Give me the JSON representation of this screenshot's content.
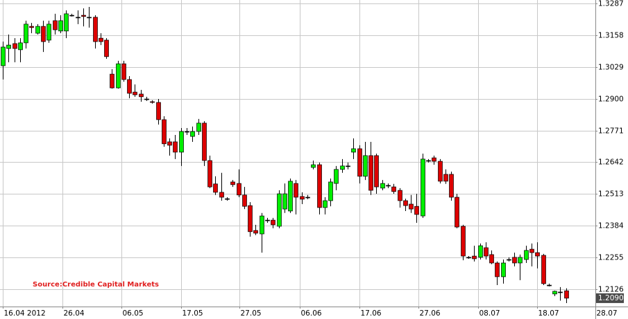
{
  "chart_data": {
    "type": "candlestick",
    "annotation": "Source:Credible Capital Markets",
    "x": [
      0,
      1,
      2,
      3,
      4,
      5,
      6,
      7,
      8,
      9,
      10,
      11,
      12,
      13,
      14,
      15,
      16,
      17,
      18,
      19,
      20,
      21,
      22,
      23,
      24,
      25,
      26,
      27,
      28,
      29,
      30,
      31,
      32,
      33,
      34,
      35,
      36,
      37,
      38,
      39,
      40,
      41,
      42,
      43,
      44,
      45,
      46,
      47,
      48,
      49,
      50,
      51,
      52,
      53,
      54,
      55,
      56,
      57,
      58,
      59,
      60,
      61,
      62,
      63,
      64,
      65,
      66,
      67,
      68,
      69,
      70,
      71,
      72,
      73,
      74,
      75,
      76,
      77,
      78,
      79,
      80,
      81,
      82,
      83,
      84,
      85,
      86,
      87,
      88,
      89,
      90,
      91,
      92,
      93,
      94,
      95,
      96,
      97,
      98
    ],
    "open": [
      1.3034,
      1.3104,
      1.3124,
      1.3099,
      1.3127,
      1.3194,
      1.3166,
      1.3194,
      1.3138,
      1.3217,
      1.3175,
      1.3175,
      1.3239,
      1.3231,
      1.3239,
      1.3231,
      1.3231,
      1.3146,
      1.3138,
      1.3,
      1.2944,
      1.3042,
      1.2978,
      1.2927,
      1.2919,
      1.2899,
      1.2888,
      1.2885,
      1.2815,
      1.2725,
      1.2725,
      1.2683,
      1.2767,
      1.2747,
      1.2767,
      1.2801,
      1.2649,
      1.2554,
      1.252,
      1.2494,
      1.2562,
      1.2556,
      1.2509,
      1.2466,
      1.2365,
      1.2351,
      1.2407,
      1.2407,
      1.2382,
      1.2452,
      1.2444,
      1.2556,
      1.2503,
      1.25,
      1.2621,
      1.2632,
      1.2458,
      1.2486,
      1.2556,
      1.2613,
      1.2627,
      1.2683,
      1.2697,
      1.2585,
      1.2669,
      1.2669,
      1.2537,
      1.2548,
      1.2542,
      1.2528,
      1.2486,
      1.2472,
      1.2463,
      1.2424,
      1.2649,
      1.266,
      1.2646,
      1.2593,
      1.2593,
      1.25,
      1.2382,
      1.2256,
      1.2261,
      1.2256,
      1.2295,
      1.2267,
      1.2233,
      1.2177,
      1.2247,
      1.2256,
      1.2233,
      1.2247,
      1.2289,
      1.2275,
      1.2264,
      1.2143,
      1.2107,
      1.2115,
      1.212
    ],
    "high": [
      1.3132,
      1.3161,
      1.3146,
      1.3146,
      1.3217,
      1.3208,
      1.3203,
      1.3217,
      1.3217,
      1.3245,
      1.3239,
      1.3259,
      1.3245,
      1.3259,
      1.3267,
      1.3273,
      1.3239,
      1.3166,
      1.3146,
      1.302,
      1.3054,
      1.3054,
      1.2992,
      1.2958,
      1.2936,
      1.2908,
      1.2894,
      1.2899,
      1.2829,
      1.2739,
      1.2753,
      1.2781,
      1.2781,
      1.2787,
      1.2818,
      1.2809,
      1.2669,
      1.2585,
      1.2599,
      1.25,
      1.257,
      1.2613,
      1.2542,
      1.248,
      1.2388,
      1.2436,
      1.2416,
      1.2416,
      1.2528,
      1.2556,
      1.2576,
      1.257,
      1.252,
      1.2509,
      1.2649,
      1.2641,
      1.25,
      1.2576,
      1.2627,
      1.2655,
      1.2641,
      1.2739,
      1.2711,
      1.2725,
      1.2725,
      1.2677,
      1.257,
      1.2556,
      1.2554,
      1.2537,
      1.2494,
      1.2509,
      1.2514,
      1.2677,
      1.2655,
      1.2669,
      1.2655,
      1.2613,
      1.2604,
      1.2514,
      1.2388,
      1.2261,
      1.2303,
      1.2312,
      1.2317,
      1.2284,
      1.2239,
      1.2247,
      1.2256,
      1.2275,
      1.2267,
      1.2303,
      1.2312,
      1.2317,
      1.227,
      1.2149,
      1.2121,
      1.2135,
      1.213
    ],
    "low": [
      1.2978,
      1.3048,
      1.3048,
      1.3048,
      1.3104,
      1.3166,
      1.3161,
      1.309,
      1.3127,
      1.3161,
      1.3166,
      1.3146,
      1.3234,
      1.3203,
      1.3194,
      1.3189,
      1.3104,
      1.3118,
      1.3062,
      1.2941,
      1.2941,
      1.2969,
      1.2902,
      1.2908,
      1.2888,
      1.2891,
      1.288,
      1.2795,
      1.2705,
      1.2669,
      1.2655,
      1.2627,
      1.2753,
      1.2725,
      1.2753,
      1.2627,
      1.2537,
      1.2509,
      1.2486,
      1.2486,
      1.2542,
      1.25,
      1.2452,
      1.234,
      1.2346,
      1.2275,
      1.2396,
      1.2374,
      1.2374,
      1.2436,
      1.2436,
      1.243,
      1.2472,
      1.2492,
      1.2613,
      1.243,
      1.243,
      1.2463,
      1.2528,
      1.2599,
      1.2613,
      1.2655,
      1.2556,
      1.257,
      1.2509,
      1.2514,
      1.2528,
      1.2537,
      1.2514,
      1.2458,
      1.2444,
      1.2436,
      1.2396,
      1.2416,
      1.2641,
      1.2632,
      1.2556,
      1.2554,
      1.2486,
      1.2374,
      1.2244,
      1.225,
      1.2239,
      1.2247,
      1.2247,
      1.2228,
      1.2143,
      1.2149,
      1.2239,
      1.2219,
      1.2163,
      1.2233,
      1.2219,
      1.2211,
      1.2143,
      1.2138,
      1.2098,
      1.208,
      1.207
    ],
    "close": [
      1.311,
      1.3118,
      1.3104,
      1.3127,
      1.3203,
      1.3189,
      1.3194,
      1.3132,
      1.3203,
      1.318,
      1.3217,
      1.3245,
      1.3239,
      1.3231,
      1.3234,
      1.3231,
      1.3132,
      1.3132,
      1.3071,
      1.2944,
      1.3042,
      1.2978,
      1.2922,
      1.2916,
      1.2908,
      1.2899,
      1.2885,
      1.2815,
      1.2717,
      1.2711,
      1.2683,
      1.2767,
      1.2767,
      1.2767,
      1.2801,
      1.2649,
      1.2542,
      1.252,
      1.25,
      1.2494,
      1.2551,
      1.2509,
      1.2463,
      1.236,
      1.2354,
      1.2424,
      1.2407,
      1.2388,
      1.2514,
      1.2514,
      1.2565,
      1.25,
      1.2492,
      1.25,
      1.2632,
      1.2458,
      1.2486,
      1.2562,
      1.2613,
      1.2627,
      1.2627,
      1.2697,
      1.2585,
      1.2669,
      1.2528,
      1.2542,
      1.2556,
      1.2548,
      1.2523,
      1.2486,
      1.2466,
      1.2452,
      1.243,
      1.2655,
      1.2649,
      1.2646,
      1.2565,
      1.2565,
      1.25,
      1.2379,
      1.2261,
      1.2256,
      1.225,
      1.2303,
      1.2261,
      1.2233,
      1.2177,
      1.2233,
      1.2247,
      1.2233,
      1.2256,
      1.2284,
      1.2275,
      1.2261,
      1.2149,
      1.2143,
      1.2118,
      1.2115,
      1.209
    ],
    "up_color": "#00ee00",
    "down_color": "#dd0000",
    "xlim": [
      -0.48,
      103.1
    ],
    "xticks": [
      {
        "value": 0,
        "label": "16.04 2012"
      },
      {
        "value": 10.4,
        "label": "26.04"
      },
      {
        "value": 20.7,
        "label": "06.05"
      },
      {
        "value": 31,
        "label": "17.05"
      },
      {
        "value": 41.2,
        "label": "27.05"
      },
      {
        "value": 51.7,
        "label": "06.06"
      },
      {
        "value": 62,
        "label": "17.06"
      },
      {
        "value": 72.3,
        "label": "27.06"
      },
      {
        "value": 82.7,
        "label": "08.07"
      },
      {
        "value": 93,
        "label": "18.07"
      },
      {
        "value": 103.1,
        "label": "28.07"
      }
    ],
    "ylim": [
      1.2056,
      1.3301
    ],
    "yticks": [
      1.3287,
      1.3158,
      1.3029,
      {
        "value": 1.29,
        "label": "1.2900"
      },
      1.2771,
      1.2642,
      1.2513,
      1.2384,
      1.2255,
      1.2126
    ],
    "last_price": {
      "value": 1.209,
      "label": "1.2090"
    },
    "grid": true
  }
}
